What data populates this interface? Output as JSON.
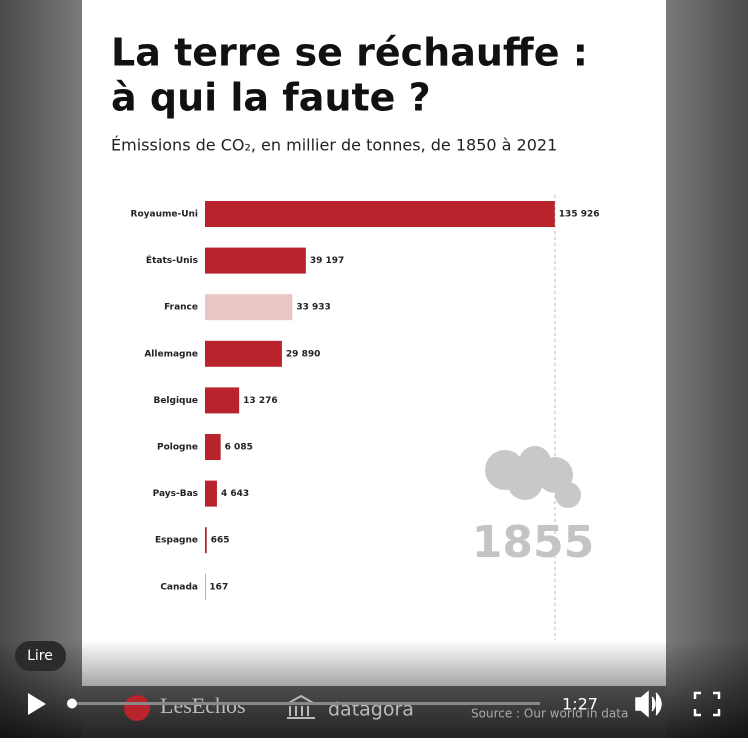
{
  "chart_data": {
    "type": "bar",
    "orientation": "horizontal",
    "title": [
      "La terre se réchauffe :",
      "à qui la faute ?"
    ],
    "subtitle": "Émissions de CO₂, en millier de tonnes, de 1850 à 2021",
    "categories": [
      "Royaume-Uni",
      "États-Unis",
      "France",
      "Allemagne",
      "Belgique",
      "Pologne",
      "Pays-Bas",
      "Espagne",
      "Canada"
    ],
    "values": [
      135926,
      39197,
      33933,
      29890,
      13276,
      6085,
      4643,
      665,
      167
    ],
    "value_labels": [
      "135 926",
      "39 197",
      "33 933",
      "29 890",
      "13 276",
      "6 085",
      "4 643",
      "665",
      "167"
    ],
    "colors": [
      "#b8232c",
      "#b8232c",
      "#ebc4c6",
      "#b8232c",
      "#b8232c",
      "#b8232c",
      "#b8232c",
      "#b8232c",
      "#b8232c"
    ],
    "xlim": [
      0,
      136000
    ],
    "annotation": "1855"
  },
  "branding": {
    "publisher": "LesEchos",
    "partner": "datagora",
    "source": "Source : Our world in data"
  },
  "player": {
    "tooltip": "Lire",
    "time": "1:27"
  }
}
